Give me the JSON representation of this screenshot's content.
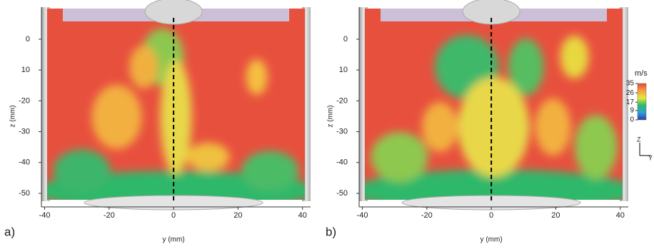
{
  "chart_data": [
    {
      "type": "field",
      "panel_label": "a)",
      "xlabel": "y (mm)",
      "ylabel": "z (mm)",
      "xlim": [
        -41,
        42.5
      ],
      "ylim": [
        -54.4,
        10.4
      ],
      "xticks": [
        -40,
        -20,
        0,
        20,
        40
      ],
      "yticks": [
        0,
        {
          "value": -10,
          "label": "10"
        },
        -20,
        -30,
        -40,
        -50
      ]
    },
    {
      "type": "field",
      "panel_label": "b)",
      "xlabel": "y (mm)",
      "ylabel": "z (mm)",
      "xlim": [
        -41,
        42.5
      ],
      "ylim": [
        -54.4,
        10.4
      ],
      "xticks": [
        -40,
        -20,
        0,
        20,
        40
      ],
      "yticks": [
        0,
        {
          "value": -10,
          "label": "10"
        },
        -20,
        -30,
        -40,
        -50
      ]
    },
    {
      "type": "colorbar",
      "title": "m/s",
      "ylim": [
        0,
        35
      ],
      "yticks": [
        35,
        26,
        17,
        9,
        0
      ],
      "colors": [
        "#2b3fb0",
        "#2fa0d8",
        "#2fb86a",
        "#e8e83a",
        "#f4a040",
        "#e8463c"
      ],
      "axis_labels": [
        "Z",
        "Y"
      ]
    }
  ]
}
